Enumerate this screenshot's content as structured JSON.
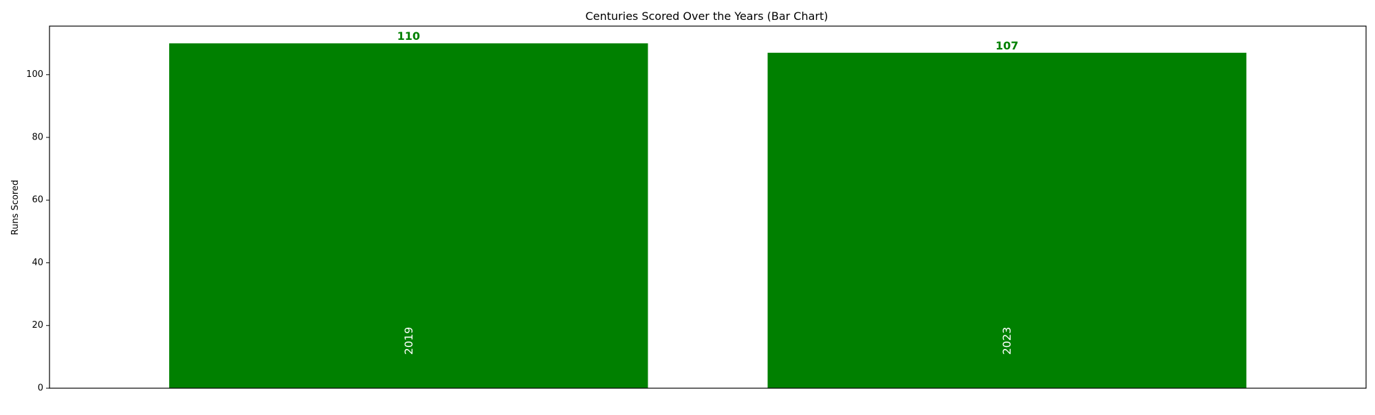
{
  "chart_data": {
    "type": "bar",
    "title": "Centuries Scored Over the Years (Bar Chart)",
    "xlabel": "",
    "ylabel": "Runs Scored",
    "categories": [
      "2019",
      "2023"
    ],
    "values": [
      110,
      107
    ],
    "value_labels": [
      "110",
      "107"
    ],
    "ylim": [
      0,
      115.5
    ],
    "yticks": [
      0,
      20,
      40,
      60,
      80,
      100
    ],
    "ytick_labels": [
      "0",
      "20",
      "40",
      "60",
      "80",
      "100"
    ],
    "bar_color": "#008000",
    "value_label_color": "#008000",
    "category_label_color": "#ffffff",
    "category_labels_inside_bars": true,
    "grid": false,
    "legend": "none"
  }
}
